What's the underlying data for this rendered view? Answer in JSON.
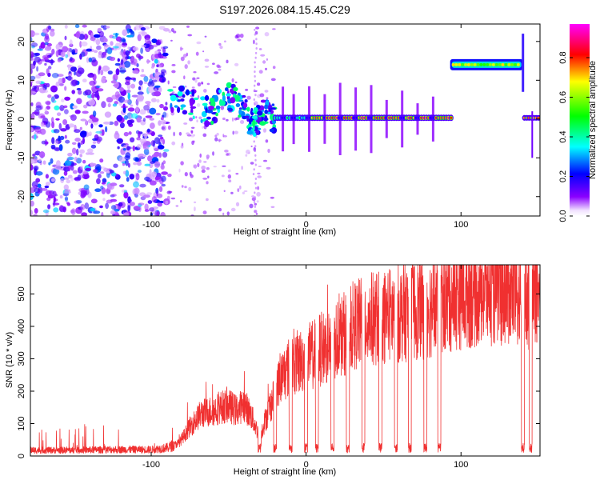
{
  "title": "S197.2026.084.15.45.C29",
  "chart_data": [
    {
      "type": "heatmap",
      "title": "S197.2026.084.15.45.C29",
      "xlabel": "Height of straight line (km)",
      "ylabel": "Frequency (Hz)",
      "xlim": [
        -178,
        151
      ],
      "ylim": [
        -25,
        24.5
      ],
      "x_ticks": [
        -100,
        0,
        100
      ],
      "x_tick_labels": [
        "-100",
        "0",
        "100"
      ],
      "y_ticks": [
        -20,
        -10,
        0,
        10,
        20
      ],
      "y_tick_labels": [
        "-20",
        "-10",
        "0",
        "10",
        "20"
      ],
      "colorbar": {
        "label": "Normalized spectral amplitude",
        "range": [
          0,
          0.97
        ],
        "ticks": [
          0,
          0.2,
          0.4,
          0.6,
          0.8
        ],
        "tick_labels": [
          "0.0",
          "0.2",
          "0.4",
          "0.6",
          "0.8"
        ],
        "colors": [
          "#ffffff",
          "#8a00ff",
          "#0000ff",
          "#00ffff",
          "#00ff00",
          "#ffff00",
          "#ff0000",
          "#ff00ff"
        ]
      },
      "regions": [
        {
          "name": "noise",
          "x_range": [
            -178,
            -90
          ],
          "freq_range": [
            -25,
            24
          ],
          "amplitude": 0.1
        },
        {
          "name": "descending-track",
          "x_points": [
            -88,
            -75,
            -62,
            -50,
            -40,
            -34,
            -28,
            -20
          ],
          "freq_points": [
            6,
            4,
            2,
            6,
            3,
            -2,
            2,
            0
          ],
          "amplitude": 0.3
        },
        {
          "name": "stable-tone",
          "x_range": [
            -20,
            94
          ],
          "freq": 0.3,
          "amplitude": 0.85,
          "gaps_at": [
            -15,
            -8,
            2,
            12,
            22,
            32,
            42,
            52,
            62,
            72,
            82
          ]
        },
        {
          "name": "high-tone",
          "x_range": [
            93,
            140
          ],
          "freq": 14,
          "amplitude": 0.6
        },
        {
          "name": "end-tone",
          "x_range": [
            141,
            151
          ],
          "freq": 0.3,
          "amplitude": 0.6
        }
      ]
    },
    {
      "type": "line",
      "xlabel": "Height of straight line (km)",
      "ylabel": "SNR (10 * v/v)",
      "xlim": [
        -178,
        151
      ],
      "ylim": [
        0,
        590
      ],
      "x_ticks": [
        -100,
        0,
        100
      ],
      "x_tick_labels": [
        "-100",
        "0",
        "100"
      ],
      "y_ticks": [
        0,
        100,
        200,
        300,
        400,
        500
      ],
      "y_tick_labels": [
        "0",
        "100",
        "200",
        "300",
        "400",
        "500"
      ],
      "series": [
        {
          "name": "SNR",
          "color": "#f03030",
          "x": [
            -178,
            -150,
            -120,
            -100,
            -90,
            -82,
            -75,
            -68,
            -60,
            -55,
            -50,
            -45,
            -40,
            -35,
            -30,
            -25,
            -20,
            -15,
            -10,
            -5,
            0,
            10,
            20,
            30,
            40,
            50,
            60,
            70,
            80,
            90,
            100,
            110,
            120,
            130,
            140,
            150
          ],
          "y": [
            18,
            18,
            20,
            20,
            25,
            40,
            90,
            130,
            140,
            150,
            155,
            140,
            160,
            120,
            60,
            130,
            200,
            250,
            280,
            290,
            300,
            330,
            360,
            400,
            420,
            430,
            440,
            450,
            460,
            480,
            500,
            510,
            520,
            520,
            500,
            505
          ],
          "noise_amplitude": 0.35,
          "dropouts_x": [
            -30,
            -20,
            -10,
            0,
            7,
            17,
            27,
            37,
            48,
            58,
            67,
            77,
            86,
            140,
            145
          ]
        }
      ]
    }
  ]
}
